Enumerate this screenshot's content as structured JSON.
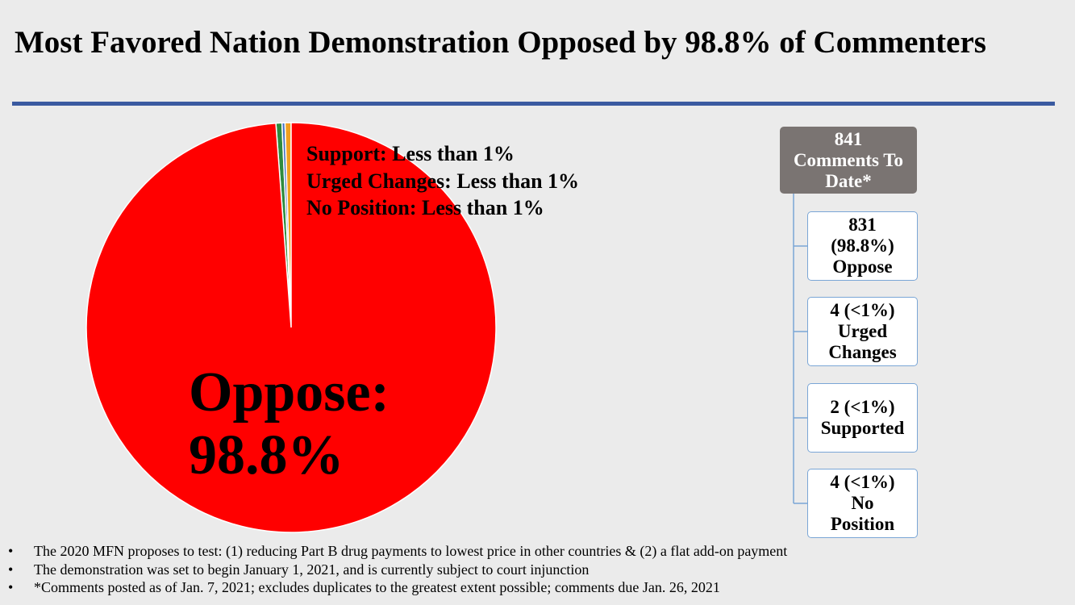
{
  "title": "Most Favored Nation Demonstration Opposed by 98.8% of Commenters",
  "chart_data": {
    "type": "pie",
    "total": 841,
    "slices": [
      {
        "label": "Oppose",
        "value": 831,
        "color": "#ff0000"
      },
      {
        "label": "Urged Changes",
        "value": 4,
        "color": "#2e8b3e"
      },
      {
        "label": "Support",
        "value": 2,
        "color": "#4472c4"
      },
      {
        "label": "No Position",
        "value": 4,
        "color": "#f0a020"
      }
    ]
  },
  "legend": {
    "support": "Support:  Less than 1%",
    "urged": "Urged Changes:  Less than 1%",
    "no_position": "No Position:  Less than 1%"
  },
  "oppose_label": {
    "line1": "Oppose:",
    "line2": "98.8%"
  },
  "breakdown": {
    "total": {
      "line1": "841",
      "line2": "Comments To",
      "line3": "Date*"
    },
    "oppose": {
      "line1": "831",
      "line2": "(98.8%)",
      "line3": "Oppose"
    },
    "urged": {
      "line1": "4 (<1%)",
      "line2": "Urged",
      "line3": "Changes"
    },
    "supported": {
      "line1": "2 (<1%)",
      "line2": "Supported"
    },
    "no_position": {
      "line1": "4 (<1%)",
      "line2": "No",
      "line3": "Position"
    }
  },
  "footnotes": [
    "The 2020 MFN proposes to test:  (1) reducing Part B drug payments to lowest price in other countries & (2) a flat add-on payment",
    "The demonstration was set to begin January 1, 2021, and is currently subject to court injunction",
    "*Comments posted as of Jan. 7, 2021; excludes duplicates to the greatest extent possible; comments due Jan. 26, 2021"
  ]
}
